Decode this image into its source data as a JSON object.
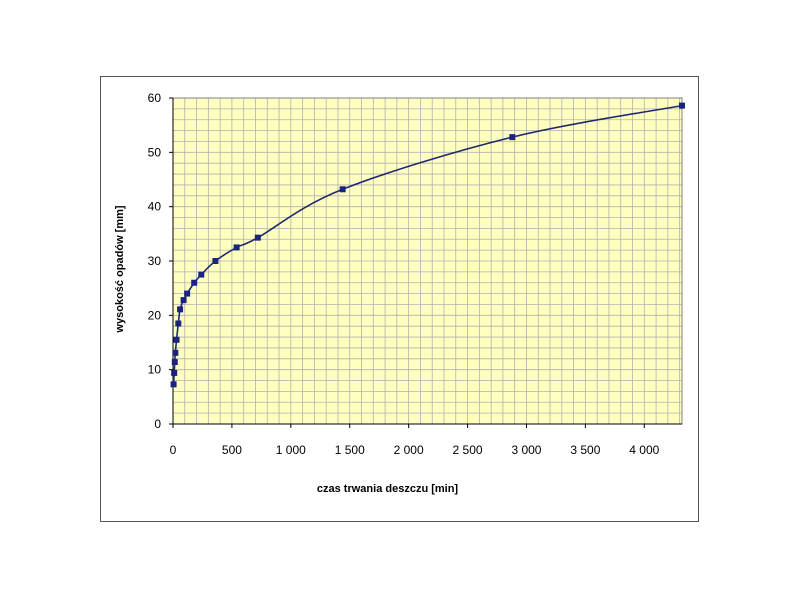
{
  "chart_data": {
    "type": "line",
    "title": "",
    "xlabel": "czas trwania deszczu [min]",
    "ylabel": "wysokość opadów [mm]",
    "xlim": [
      0,
      4320
    ],
    "ylim": [
      0,
      60
    ],
    "x_ticks": [
      0,
      500,
      1000,
      1500,
      2000,
      2500,
      3000,
      3500,
      4000
    ],
    "x_tick_labels": [
      "0",
      "500",
      "1 000",
      "1 500",
      "2 000",
      "2 500",
      "3 000",
      "3 500",
      "4 000"
    ],
    "y_ticks": [
      0,
      10,
      20,
      30,
      40,
      50,
      60
    ],
    "y_tick_labels": [
      "0",
      "10",
      "20",
      "30",
      "40",
      "50",
      "60"
    ],
    "grid": true,
    "legend": "none",
    "plot_background": "#ffffc0",
    "grid_color": "#b0b0b0",
    "series_color": "#1f2a6e",
    "marker_color": "#1a237e",
    "series": [
      {
        "x": [
          5,
          10,
          15,
          20,
          30,
          45,
          60,
          90,
          120,
          180,
          240,
          360,
          540,
          720,
          1440,
          2880,
          4320
        ],
        "values": [
          7.3,
          9.4,
          11.4,
          13.1,
          15.5,
          18.5,
          21.1,
          22.8,
          24.0,
          26.0,
          27.5,
          30.0,
          32.5,
          34.3,
          43.2,
          52.8,
          58.6
        ]
      }
    ]
  }
}
